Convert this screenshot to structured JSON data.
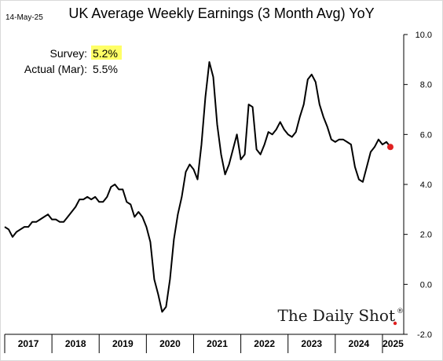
{
  "date_stamp": "14-May-25",
  "annotations": {
    "survey_label": "Survey:",
    "survey_value": "5.2%",
    "actual_label": "Actual (Mar):",
    "actual_value": "5.5%"
  },
  "brand": "The Daily Shot",
  "brand_mark": "®",
  "colors": {
    "line": "#000000",
    "latest_point": "#e02020",
    "highlight": "#ffff66",
    "axis": "#000000"
  },
  "chart_data": {
    "type": "line",
    "title": "UK Average Weekly Earnings (3 Month Avg) YoY",
    "xlabel": "",
    "ylabel": "",
    "ylim": [
      -2.0,
      10.0
    ],
    "y_axis_side": "right",
    "y_ticks": [
      "10.0",
      "8.0",
      "6.0",
      "4.0",
      "2.0",
      "0.0",
      "-2.0"
    ],
    "year_labels": [
      "2017",
      "2018",
      "2019",
      "2020",
      "2021",
      "2022",
      "2023",
      "2024",
      "2025"
    ],
    "series": [
      {
        "name": "",
        "x": [
          "2017-01",
          "2017-02",
          "2017-03",
          "2017-04",
          "2017-05",
          "2017-06",
          "2017-07",
          "2017-08",
          "2017-09",
          "2017-10",
          "2017-11",
          "2017-12",
          "2018-01",
          "2018-02",
          "2018-03",
          "2018-04",
          "2018-05",
          "2018-06",
          "2018-07",
          "2018-08",
          "2018-09",
          "2018-10",
          "2018-11",
          "2018-12",
          "2019-01",
          "2019-02",
          "2019-03",
          "2019-04",
          "2019-05",
          "2019-06",
          "2019-07",
          "2019-08",
          "2019-09",
          "2019-10",
          "2019-11",
          "2019-12",
          "2020-01",
          "2020-02",
          "2020-03",
          "2020-04",
          "2020-05",
          "2020-06",
          "2020-07",
          "2020-08",
          "2020-09",
          "2020-10",
          "2020-11",
          "2020-12",
          "2021-01",
          "2021-02",
          "2021-03",
          "2021-04",
          "2021-05",
          "2021-06",
          "2021-07",
          "2021-08",
          "2021-09",
          "2021-10",
          "2021-11",
          "2021-12",
          "2022-01",
          "2022-02",
          "2022-03",
          "2022-04",
          "2022-05",
          "2022-06",
          "2022-07",
          "2022-08",
          "2022-09",
          "2022-10",
          "2022-11",
          "2022-12",
          "2023-01",
          "2023-02",
          "2023-03",
          "2023-04",
          "2023-05",
          "2023-06",
          "2023-07",
          "2023-08",
          "2023-09",
          "2023-10",
          "2023-11",
          "2023-12",
          "2024-01",
          "2024-02",
          "2024-03",
          "2024-04",
          "2024-05",
          "2024-06",
          "2024-07",
          "2024-08",
          "2024-09",
          "2024-10",
          "2024-11",
          "2024-12",
          "2025-01",
          "2025-02",
          "2025-03"
        ],
        "values": [
          2.3,
          2.2,
          1.9,
          2.1,
          2.2,
          2.3,
          2.3,
          2.5,
          2.5,
          2.6,
          2.7,
          2.8,
          2.6,
          2.6,
          2.5,
          2.5,
          2.7,
          2.9,
          3.1,
          3.4,
          3.4,
          3.5,
          3.4,
          3.5,
          3.3,
          3.3,
          3.5,
          3.9,
          4.0,
          3.8,
          3.8,
          3.3,
          3.2,
          2.7,
          2.9,
          2.7,
          2.3,
          1.7,
          0.2,
          -0.4,
          -1.1,
          -0.9,
          0.2,
          1.8,
          2.8,
          3.5,
          4.5,
          4.8,
          4.6,
          4.2,
          5.6,
          7.5,
          8.9,
          8.3,
          6.4,
          5.2,
          4.4,
          4.8,
          5.4,
          6.0,
          5.0,
          5.2,
          7.2,
          7.1,
          5.4,
          5.2,
          5.6,
          6.1,
          6.0,
          6.2,
          6.5,
          6.2,
          6.0,
          5.9,
          6.1,
          6.7,
          7.2,
          8.2,
          8.4,
          8.1,
          7.2,
          6.7,
          6.3,
          5.8,
          5.7,
          5.8,
          5.8,
          5.7,
          5.6,
          4.7,
          4.2,
          4.1,
          4.7,
          5.3,
          5.5,
          5.8,
          5.6,
          5.7,
          5.5
        ],
        "latest": {
          "x": "2025-03",
          "value": 5.5
        }
      }
    ],
    "grid": false,
    "legend": "none"
  }
}
